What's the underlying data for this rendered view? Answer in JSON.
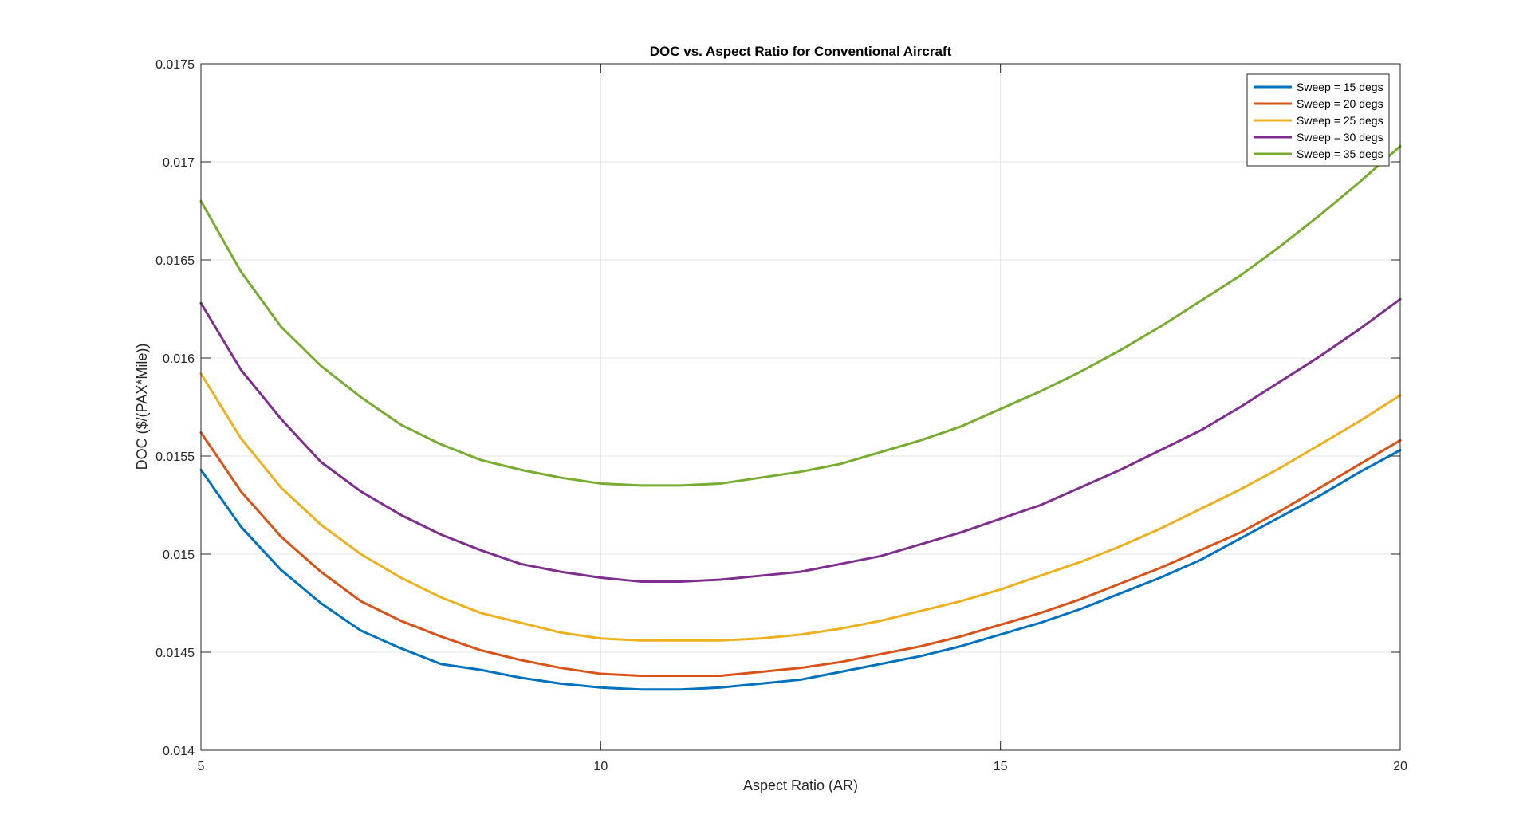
{
  "chart_data": {
    "type": "line",
    "title": "DOC vs. Aspect Ratio for Conventional Aircraft",
    "xlabel": "Aspect Ratio (AR)",
    "ylabel": "DOC ($/(PAX*Mile))",
    "xlim": [
      5,
      20
    ],
    "ylim": [
      0.014,
      0.0175
    ],
    "xticks": [
      5,
      10,
      15,
      20
    ],
    "xtick_labels": [
      "5",
      "10",
      "15",
      "20"
    ],
    "yticks": [
      0.014,
      0.0145,
      0.015,
      0.0155,
      0.016,
      0.0165,
      0.017,
      0.0175
    ],
    "ytick_labels": [
      "0.014",
      "0.0145",
      "0.015",
      "0.0155",
      "0.016",
      "0.0165",
      "0.017",
      "0.0175"
    ],
    "grid": true,
    "legend_position": "top-right",
    "x": [
      5,
      5.5,
      6,
      6.5,
      7,
      7.5,
      8,
      8.5,
      9,
      9.5,
      10,
      10.5,
      11,
      11.5,
      12,
      12.5,
      13,
      13.5,
      14,
      14.5,
      15,
      15.5,
      16,
      16.5,
      17,
      17.5,
      18,
      18.5,
      19,
      19.5,
      20
    ],
    "series": [
      {
        "name": "Sweep = 15 degs",
        "color": "#0072BD",
        "values": [
          0.01543,
          0.01514,
          0.01492,
          0.01475,
          0.01461,
          0.01452,
          0.01444,
          0.01441,
          0.01437,
          0.01434,
          0.01432,
          0.01431,
          0.01431,
          0.01432,
          0.01434,
          0.01436,
          0.0144,
          0.01444,
          0.01448,
          0.01453,
          0.01459,
          0.01465,
          0.01472,
          0.0148,
          0.01488,
          0.01497,
          0.01508,
          0.01519,
          0.0153,
          0.01542,
          0.01553
        ]
      },
      {
        "name": "Sweep = 20 degs",
        "color": "#D95319",
        "values": [
          0.01562,
          0.01532,
          0.01509,
          0.01491,
          0.01476,
          0.01466,
          0.01458,
          0.01451,
          0.01446,
          0.01442,
          0.01439,
          0.01438,
          0.01438,
          0.01438,
          0.0144,
          0.01442,
          0.01445,
          0.01449,
          0.01453,
          0.01458,
          0.01464,
          0.0147,
          0.01477,
          0.01485,
          0.01493,
          0.01502,
          0.01511,
          0.01522,
          0.01534,
          0.01546,
          0.01558
        ]
      },
      {
        "name": "Sweep = 25 degs",
        "color": "#EDB120",
        "values": [
          0.01592,
          0.01559,
          0.01534,
          0.01515,
          0.015,
          0.01488,
          0.01478,
          0.0147,
          0.01465,
          0.0146,
          0.01457,
          0.01456,
          0.01456,
          0.01456,
          0.01457,
          0.01459,
          0.01462,
          0.01466,
          0.01471,
          0.01476,
          0.01482,
          0.01489,
          0.01496,
          0.01504,
          0.01513,
          0.01523,
          0.01533,
          0.01544,
          0.01556,
          0.01568,
          0.01581
        ]
      },
      {
        "name": "Sweep = 30 degs",
        "color": "#7E2F8E",
        "values": [
          0.01628,
          0.01594,
          0.01569,
          0.01547,
          0.01532,
          0.0152,
          0.0151,
          0.01502,
          0.01495,
          0.01491,
          0.01488,
          0.01486,
          0.01486,
          0.01487,
          0.01489,
          0.01491,
          0.01495,
          0.01499,
          0.01505,
          0.01511,
          0.01518,
          0.01525,
          0.01534,
          0.01543,
          0.01553,
          0.01563,
          0.01575,
          0.01588,
          0.01601,
          0.01615,
          0.0163
        ]
      },
      {
        "name": "Sweep = 35 degs",
        "color": "#77AC30",
        "values": [
          0.0168,
          0.01644,
          0.01616,
          0.01596,
          0.0158,
          0.01566,
          0.01556,
          0.01548,
          0.01543,
          0.01539,
          0.01536,
          0.01535,
          0.01535,
          0.01536,
          0.01539,
          0.01542,
          0.01546,
          0.01552,
          0.01558,
          0.01565,
          0.01574,
          0.01583,
          0.01593,
          0.01604,
          0.01616,
          0.01629,
          0.01642,
          0.01657,
          0.01673,
          0.0169,
          0.01708
        ]
      }
    ]
  }
}
